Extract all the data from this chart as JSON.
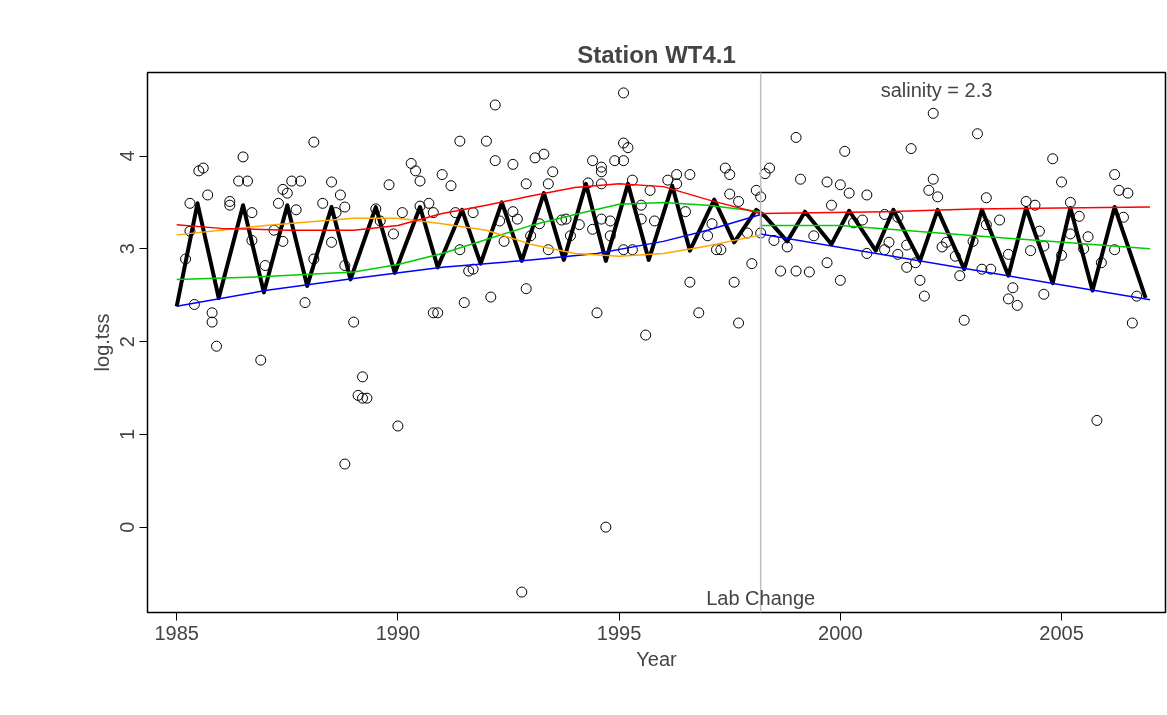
{
  "chart_data": {
    "type": "scatter",
    "title": "Station WT4.1",
    "xlabel": "Year",
    "ylabel": "log.tss",
    "xlim": [
      1984.34,
      2007.35
    ],
    "ylim": [
      -0.92,
      4.9
    ],
    "xticks": [
      1985,
      1990,
      1995,
      2000,
      2005
    ],
    "yticks": [
      0,
      1,
      2,
      3,
      4
    ],
    "line_style": "solid",
    "annotations": [
      "salinity = 2.3"
    ],
    "ref_lines": [
      {
        "axis": "x",
        "value": 1998.2,
        "label": "Lab Change",
        "color": "#bebebe"
      }
    ],
    "series": [
      {
        "marker": "circle",
        "color": "#000000",
        "x": [
          1985.2,
          1985.3,
          1985.5,
          1985.6,
          1985.7,
          1985.8,
          1985.8,
          1985.9,
          1985.4,
          1985.3,
          1986.2,
          1986.2,
          1986.5,
          1986.6,
          1986.4,
          1986.7,
          1986.7,
          1986.9,
          1987.0,
          1987.2,
          1987.3,
          1987.4,
          1987.5,
          1987.6,
          1987.8,
          1987.7,
          1987.4,
          1987.9,
          1988.1,
          1988.1,
          1988.3,
          1988.5,
          1988.6,
          1988.7,
          1988.8,
          1988.8,
          1989.0,
          1989.1,
          1989.2,
          1989.2,
          1989.3,
          1988.8,
          1988.5,
          1989.5,
          1989.6,
          1989.8,
          1990.0,
          1989.9,
          1990.1,
          1990.3,
          1990.4,
          1990.5,
          1990.5,
          1990.7,
          1990.8,
          1990.9,
          1990.8,
          1991.0,
          1991.2,
          1991.3,
          1991.4,
          1991.5,
          1991.6,
          1991.7,
          1991.4,
          1991.7,
          1992.2,
          1992.0,
          1992.2,
          1992.6,
          1993.1,
          1993.3,
          1993.5,
          1992.9,
          1993.4,
          1994.4,
          1994.6,
          1994.6,
          1994.9,
          1995.1,
          1995.1,
          1995.1,
          1995.2,
          1995.3,
          1994.3,
          1994.6,
          1995.7,
          1996.1,
          1996.3,
          1996.3,
          1996.6,
          1997.4,
          1997.5,
          1997.5,
          1997.7,
          1998.1,
          1998.2,
          1998.4,
          1998.3,
          1999.0,
          1999.1,
          1992.6,
          1992.3,
          1992.7,
          1992.4,
          1993.0,
          1993.2,
          1993.4,
          1993.7,
          1993.8,
          1993.9,
          1994.1,
          1994.4,
          1994.6,
          1994.8,
          1994.8,
          1995.1,
          1995.3,
          1995.5,
          1995.5,
          1995.8,
          1996.5,
          1997.0,
          1997.1,
          1997.2,
          1997.3,
          1997.9,
          1998.2,
          1998.0,
          1992.1,
          1992.9,
          1994.5,
          1995.6,
          1996.6,
          1996.8,
          1997.6,
          1997.7,
          1994.7,
          1992.8,
          1998.65,
          1999.0,
          1999.3,
          1998.8,
          1998.5,
          1999.4,
          2000.1,
          2001.6,
          2002.1,
          2003.1,
          2004.8,
          2006.2,
          1999.7,
          2000.0,
          2000.2,
          2000.6,
          2002.1,
          2002.0,
          2002.2,
          2003.3,
          2005.0,
          2004.2,
          2004.4,
          2005.2,
          2006.3,
          2006.5,
          2006.4,
          1999.8,
          2000.5,
          2000.3,
          2001.0,
          2001.3,
          2003.6,
          2003.3,
          2005.4,
          2004.5,
          2005.2,
          2005.6,
          2001.1,
          2003.0,
          2002.4,
          2004.6,
          2006.2,
          2001.0,
          2001.5,
          2002.3,
          2005.5,
          2000.6,
          2001.3,
          2002.6,
          2004.3,
          2005.0,
          2003.8,
          2005.9,
          1999.7,
          2001.5,
          2001.7,
          2003.2,
          2003.4,
          2000.0,
          2001.8,
          2001.9,
          2002.7,
          2003.9,
          2003.8,
          2004.0,
          2004.6,
          2002.8,
          2006.7,
          2006.6,
          2005.8
        ],
        "values": [
          2.89,
          3.49,
          3.84,
          3.87,
          3.58,
          2.31,
          2.21,
          1.95,
          2.4,
          3.19,
          3.51,
          3.47,
          3.99,
          3.73,
          3.73,
          3.39,
          3.09,
          1.8,
          2.82,
          3.2,
          3.49,
          3.64,
          3.6,
          3.73,
          3.73,
          3.42,
          3.08,
          2.42,
          4.15,
          2.89,
          3.49,
          3.72,
          3.39,
          3.58,
          3.45,
          0.68,
          2.21,
          1.42,
          1.62,
          1.39,
          1.39,
          2.82,
          3.07,
          3.43,
          3.3,
          3.69,
          1.09,
          3.16,
          3.39,
          3.92,
          3.84,
          3.73,
          3.46,
          3.49,
          2.31,
          2.31,
          3.39,
          3.8,
          3.68,
          3.39,
          4.16,
          2.42,
          2.76,
          3.39,
          2.99,
          2.78,
          4.55,
          4.16,
          3.95,
          3.91,
          3.98,
          4.02,
          3.83,
          3.7,
          3.7,
          3.95,
          3.88,
          3.83,
          3.95,
          3.95,
          4.68,
          4.14,
          4.09,
          3.74,
          3.71,
          3.7,
          3.63,
          3.74,
          3.8,
          3.7,
          3.8,
          3.87,
          3.8,
          3.59,
          3.51,
          3.63,
          3.56,
          3.87,
          3.81,
          4.2,
          3.75,
          3.4,
          3.3,
          3.32,
          3.08,
          3.14,
          3.27,
          2.99,
          3.31,
          3.32,
          3.14,
          3.26,
          3.21,
          3.32,
          3.3,
          3.14,
          2.99,
          2.99,
          3.47,
          3.32,
          3.3,
          3.4,
          3.14,
          3.27,
          2.99,
          2.99,
          3.17,
          3.17,
          2.84,
          2.48,
          2.57,
          2.31,
          2.07,
          2.64,
          2.31,
          2.64,
          2.2,
          0.0,
          -0.7,
          2.76,
          2.76,
          2.75,
          3.02,
          3.09,
          3.14,
          4.05,
          4.08,
          4.46,
          4.24,
          3.97,
          3.8,
          3.72,
          3.69,
          3.6,
          3.58,
          3.75,
          3.63,
          3.56,
          3.55,
          3.72,
          3.51,
          3.47,
          3.5,
          3.63,
          3.6,
          3.34,
          3.47,
          3.31,
          3.28,
          3.37,
          3.34,
          3.31,
          3.26,
          3.35,
          3.19,
          3.16,
          3.13,
          3.07,
          3.08,
          3.07,
          3.03,
          2.99,
          2.99,
          3.04,
          3.02,
          3.0,
          2.95,
          2.94,
          2.92,
          2.98,
          2.93,
          2.94,
          2.85,
          2.85,
          2.8,
          2.85,
          2.78,
          2.78,
          2.66,
          2.66,
          2.49,
          2.71,
          2.58,
          2.46,
          2.39,
          2.51,
          2.23,
          2.49,
          2.2,
          1.15
        ]
      },
      {
        "type": "line",
        "marker": "none",
        "color": "#000000",
        "x": [
          1985.0,
          1985.47,
          1985.95,
          1986.5,
          1986.97,
          1987.5,
          1987.95,
          1988.5,
          1988.93,
          1989.5,
          1989.93,
          1990.5,
          1990.9,
          1991.45,
          1991.87,
          1992.35,
          1992.8,
          1993.3,
          1993.75,
          1994.25,
          1994.7,
          1995.2,
          1995.67,
          1996.2,
          1996.6,
          1997.15,
          1997.6,
          1998.1,
          1998.3,
          1998.8,
          1999.2,
          1999.8,
          2000.2,
          2000.8,
          2001.2,
          2001.8,
          2002.2,
          2002.8,
          2003.2,
          2003.8,
          2004.2,
          2004.8,
          2005.2,
          2005.7,
          2006.2,
          2006.9
        ],
        "values": [
          2.38,
          3.49,
          2.47,
          3.47,
          2.53,
          3.47,
          2.6,
          3.45,
          2.67,
          3.45,
          2.74,
          3.45,
          2.8,
          3.42,
          2.84,
          3.5,
          2.87,
          3.6,
          2.88,
          3.7,
          2.87,
          3.7,
          2.88,
          3.68,
          2.98,
          3.53,
          3.07,
          3.42,
          3.35,
          3.08,
          3.4,
          3.05,
          3.41,
          2.98,
          3.42,
          2.87,
          3.42,
          2.78,
          3.42,
          2.71,
          3.44,
          2.63,
          3.44,
          2.55,
          3.45,
          2.47
        ]
      },
      {
        "type": "line",
        "marker": "none",
        "color": "#0000ff",
        "x": [
          1985,
          1987,
          1989,
          1991,
          1993,
          1994.5,
          1996,
          1997,
          1998.2,
          1998.2,
          2007
        ],
        "values": [
          2.38,
          2.55,
          2.68,
          2.8,
          2.88,
          2.95,
          3.08,
          3.2,
          3.37,
          3.16,
          2.45
        ]
      },
      {
        "type": "line",
        "marker": "none",
        "color": "#00cd00",
        "x": [
          1985,
          1987,
          1989,
          1990,
          1991,
          1992,
          1993,
          1994,
          1995,
          1996,
          1997,
          1998.2,
          1998.2,
          2000,
          2007
        ],
        "values": [
          2.67,
          2.7,
          2.75,
          2.83,
          2.95,
          3.1,
          3.25,
          3.37,
          3.48,
          3.5,
          3.47,
          3.4,
          3.25,
          3.25,
          3.0
        ]
      },
      {
        "type": "line",
        "marker": "none",
        "color": "#ffa500",
        "x": [
          1985,
          1987,
          1989,
          1990,
          1991,
          1992,
          1993,
          1994,
          1995,
          1996,
          1997,
          1998.2
        ],
        "values": [
          3.15,
          3.25,
          3.33,
          3.33,
          3.27,
          3.2,
          3.05,
          2.95,
          2.92,
          2.95,
          3.03,
          3.15
        ]
      },
      {
        "type": "line",
        "marker": "none",
        "color": "#ff0000",
        "x": [
          1985,
          1986,
          1987.5,
          1989,
          1990,
          1991,
          1992,
          1993,
          1994,
          1995,
          1996,
          1997,
          1998.2,
          2001,
          2003,
          2007
        ],
        "values": [
          3.26,
          3.22,
          3.2,
          3.2,
          3.25,
          3.38,
          3.47,
          3.57,
          3.66,
          3.7,
          3.67,
          3.53,
          3.38,
          3.4,
          3.43,
          3.45
        ]
      }
    ]
  }
}
